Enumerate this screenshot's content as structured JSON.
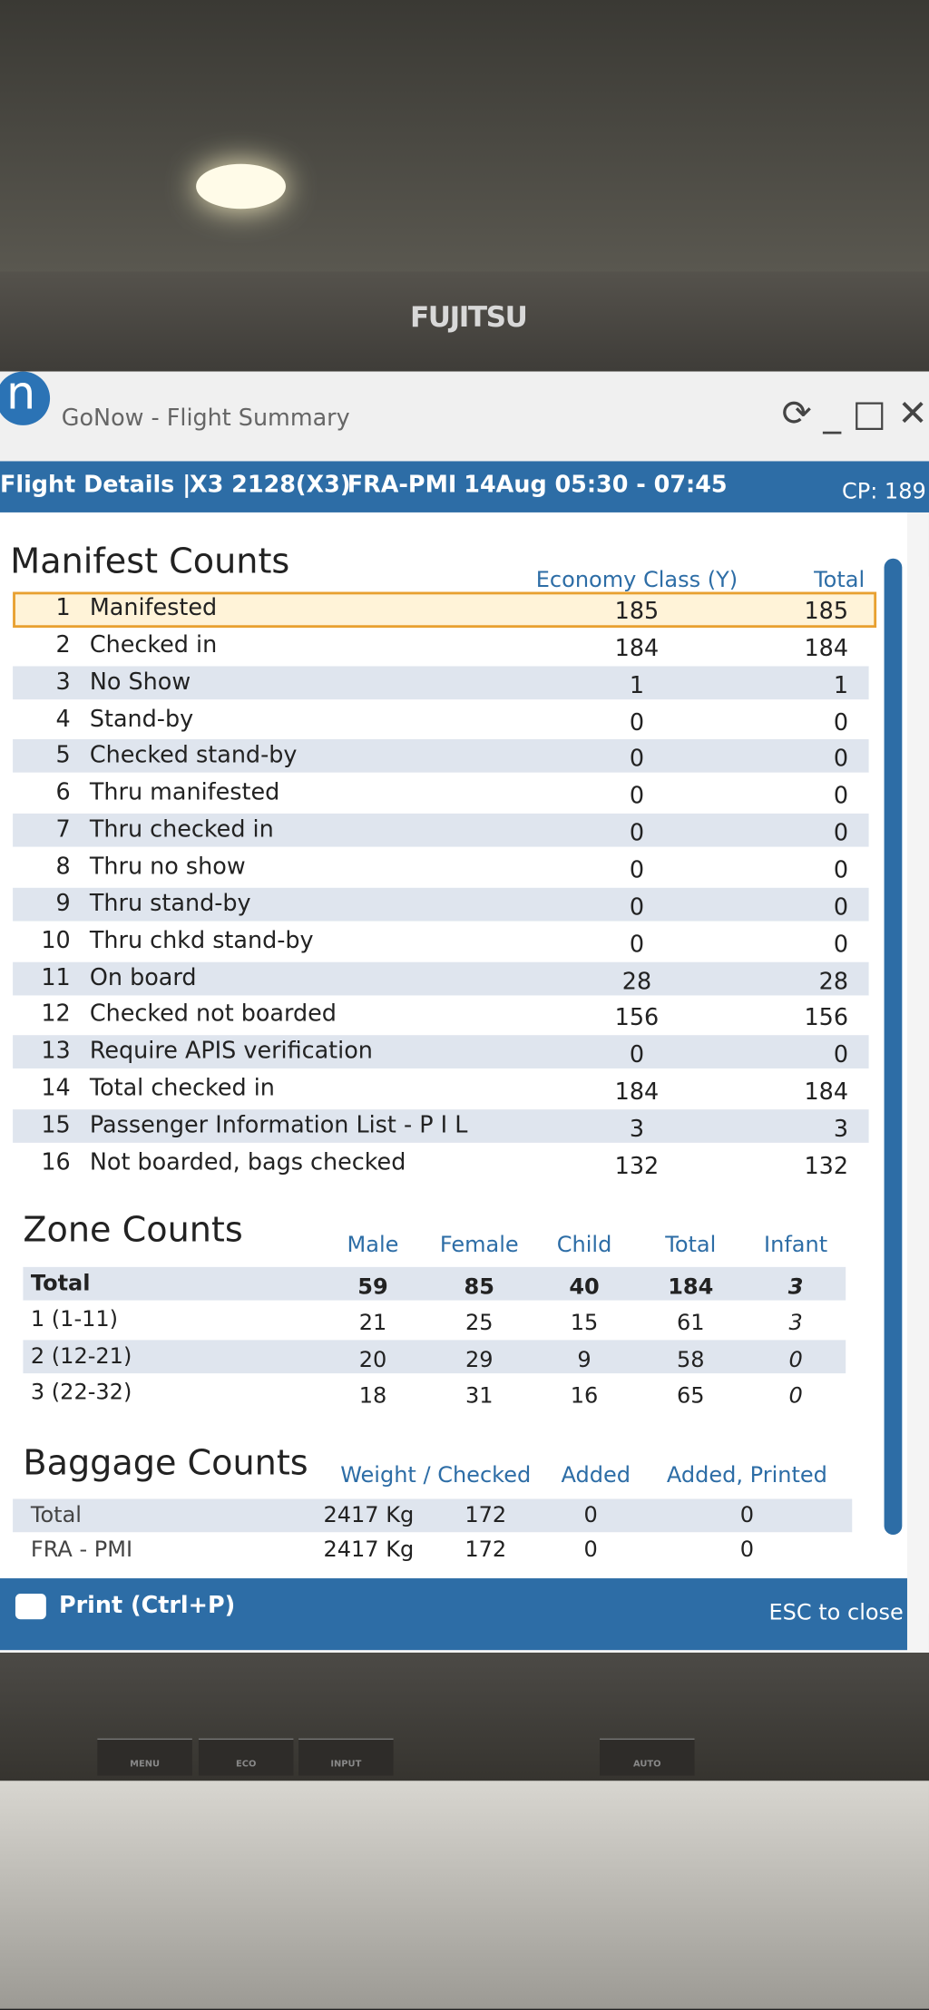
{
  "monitor": {
    "brand": "FUJITSU",
    "buttons": [
      "MENU",
      "ECO",
      "INPUT",
      "AUTO"
    ]
  },
  "window": {
    "app_icon": "n",
    "title": "GoNow - Flight Summary"
  },
  "header": {
    "label": "Flight Details |",
    "flight": "X3 2128(X3)",
    "route": "FRA-PMI",
    "date": "14Aug 05:30 - 07:45",
    "cp": "CP: 189"
  },
  "manifest": {
    "title": "Manifest Counts",
    "columns": [
      "Economy Class (Y)",
      "Total"
    ],
    "rows": [
      {
        "num": 1,
        "label": "Manifested",
        "values": [
          185,
          185
        ]
      },
      {
        "num": 2,
        "label": "Checked in",
        "values": [
          184,
          184
        ]
      },
      {
        "num": 3,
        "label": "No Show",
        "values": [
          1,
          1
        ]
      },
      {
        "num": 4,
        "label": "Stand-by",
        "values": [
          0,
          0
        ]
      },
      {
        "num": 5,
        "label": "Checked stand-by",
        "values": [
          0,
          0
        ]
      },
      {
        "num": 6,
        "label": "Thru manifested",
        "values": [
          0,
          0
        ]
      },
      {
        "num": 7,
        "label": "Thru checked in",
        "values": [
          0,
          0
        ]
      },
      {
        "num": 8,
        "label": "Thru no show",
        "values": [
          0,
          0
        ]
      },
      {
        "num": 9,
        "label": "Thru stand-by",
        "values": [
          0,
          0
        ]
      },
      {
        "num": 10,
        "label": "Thru chkd stand-by",
        "values": [
          0,
          0
        ]
      },
      {
        "num": 11,
        "label": "On board",
        "values": [
          28,
          28
        ]
      },
      {
        "num": 12,
        "label": "Checked not boarded",
        "values": [
          156,
          156
        ]
      },
      {
        "num": 13,
        "label": "Require APIS verification",
        "values": [
          0,
          0
        ]
      },
      {
        "num": 14,
        "label": "Total checked in",
        "values": [
          184,
          184
        ]
      },
      {
        "num": 15,
        "label": "Passenger Information List - P I L",
        "values": [
          3,
          3
        ]
      },
      {
        "num": 16,
        "label": "Not boarded, bags checked",
        "values": [
          132,
          132
        ]
      }
    ]
  },
  "zone": {
    "title": "Zone Counts",
    "columns": [
      "Male",
      "Female",
      "Child",
      "Total",
      "Infant"
    ],
    "rows": [
      {
        "label": "Total",
        "values": [
          59,
          85,
          40,
          184,
          3
        ]
      },
      {
        "label": "1 (1-11)",
        "values": [
          21,
          25,
          15,
          61,
          3
        ]
      },
      {
        "label": "2 (12-21)",
        "values": [
          20,
          29,
          9,
          58,
          0
        ]
      },
      {
        "label": "3 (22-32)",
        "values": [
          18,
          31,
          16,
          65,
          0
        ]
      }
    ]
  },
  "baggage": {
    "title": "Baggage Counts",
    "columns": [
      "Weight  /  Checked",
      "Added",
      "Added, Printed"
    ],
    "rows": [
      {
        "label": "Total",
        "values": [
          "2417 Kg",
          172,
          0,
          0
        ]
      },
      {
        "label": "FRA - PMI",
        "values": [
          "2417 Kg",
          172,
          0,
          0
        ]
      }
    ]
  },
  "footer": {
    "print": "Print (Ctrl+P)",
    "close": "ESC to close"
  }
}
